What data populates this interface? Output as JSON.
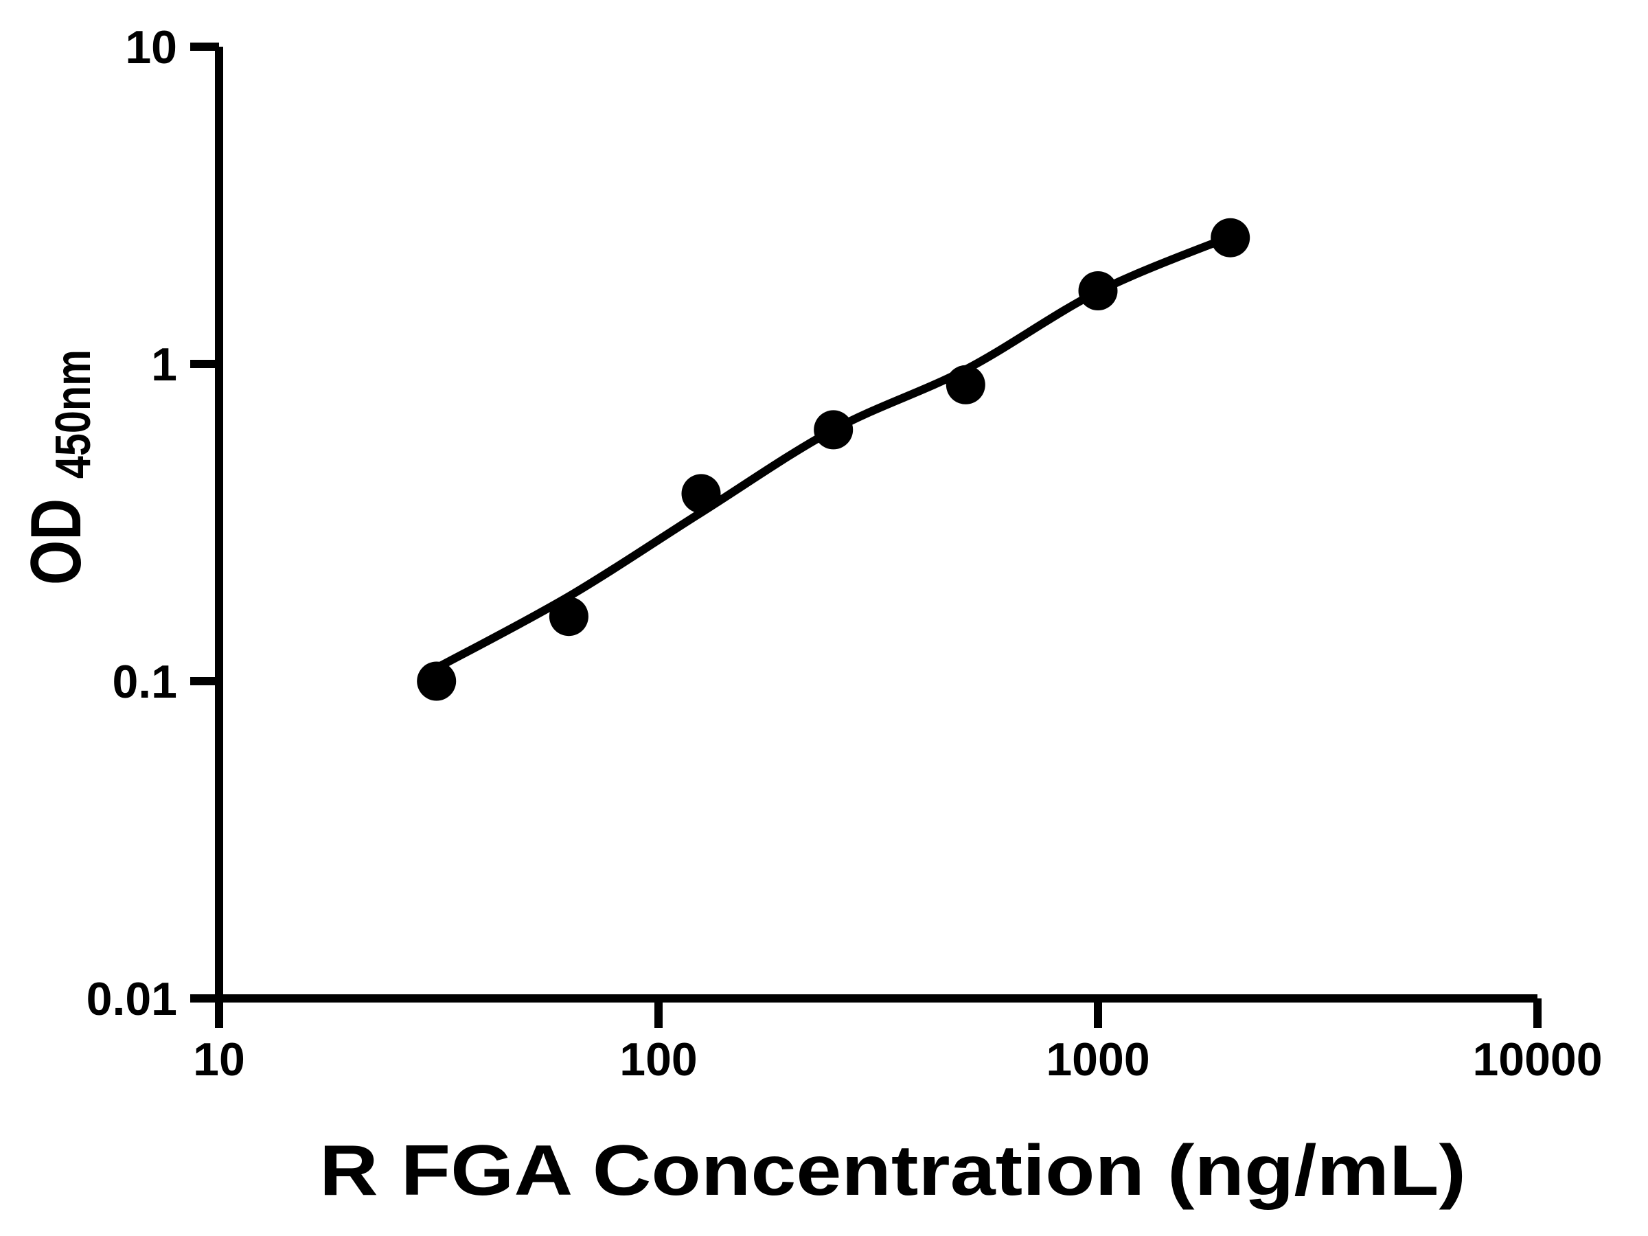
{
  "figure": {
    "background_color": "#ffffff",
    "axis_color": "#000000",
    "marker_color": "#000000",
    "curve_color": "#000000"
  },
  "chart_data": {
    "type": "scatter",
    "subtype": "standard-curve-with-fit-line",
    "title": "",
    "xlabel": "R FGA Concentration (ng/mL)",
    "ylabel_main": "OD",
    "ylabel_sub": "450nm",
    "x_scale": "log",
    "y_scale": "log",
    "xlim": [
      10,
      10000
    ],
    "ylim": [
      0.01,
      10
    ],
    "grid": false,
    "legend": "none",
    "x_ticks": [
      {
        "value": 10,
        "label": "10"
      },
      {
        "value": 100,
        "label": "100"
      },
      {
        "value": 1000,
        "label": "1000"
      },
      {
        "value": 10000,
        "label": "10000"
      }
    ],
    "y_ticks": [
      {
        "value": 0.01,
        "label": "0.01"
      },
      {
        "value": 0.1,
        "label": "0.1"
      },
      {
        "value": 1,
        "label": "1"
      },
      {
        "value": 10,
        "label": "10"
      }
    ],
    "points": [
      {
        "x": 31.25,
        "od": 0.1
      },
      {
        "x": 62.5,
        "od": 0.16
      },
      {
        "x": 125,
        "od": 0.39
      },
      {
        "x": 250,
        "od": 0.62
      },
      {
        "x": 500,
        "od": 0.86
      },
      {
        "x": 1000,
        "od": 1.7
      },
      {
        "x": 2000,
        "od": 2.5
      }
    ],
    "fit_curve": [
      {
        "x": 31.25,
        "od": 0.11
      },
      {
        "x": 62.5,
        "od": 0.185
      },
      {
        "x": 125,
        "od": 0.34
      },
      {
        "x": 250,
        "od": 0.62
      },
      {
        "x": 500,
        "od": 0.96
      },
      {
        "x": 1000,
        "od": 1.69
      },
      {
        "x": 2000,
        "od": 2.52
      }
    ]
  }
}
